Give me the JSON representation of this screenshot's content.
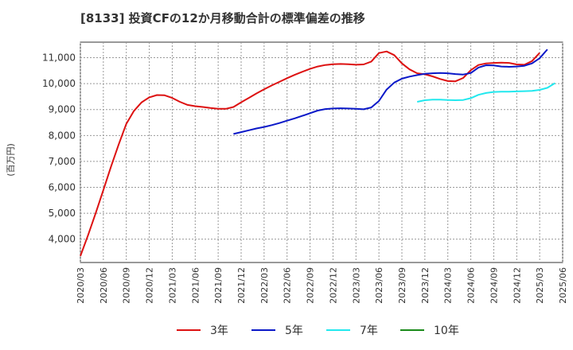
{
  "chart_data": {
    "type": "line",
    "title": "[8133]  投資CFの12か月移動合計の標準偏差の推移",
    "ylabel": "(百万円)",
    "xlabel": "",
    "ylim": [
      3100,
      11600
    ],
    "yticks": [
      4000,
      5000,
      6000,
      7000,
      8000,
      9000,
      10000,
      11000
    ],
    "ytick_labels": [
      "4,000",
      "5,000",
      "6,000",
      "7,000",
      "8,000",
      "9,000",
      "10,000",
      "11,000"
    ],
    "xticks": [
      "2020/03",
      "2020/06",
      "2020/09",
      "2020/12",
      "2021/03",
      "2021/06",
      "2021/09",
      "2021/12",
      "2022/03",
      "2022/06",
      "2022/09",
      "2022/12",
      "2023/03",
      "2023/06",
      "2023/09",
      "2023/12",
      "2024/03",
      "2024/06",
      "2024/09",
      "2024/12",
      "2025/03",
      "2025/06"
    ],
    "grid": true,
    "legend_position": "bottom",
    "series": [
      {
        "name": "3年",
        "color": "#dd1111",
        "start": "2020/03",
        "values": [
          3350,
          4150,
          5000,
          5900,
          6800,
          7650,
          8450,
          8950,
          9280,
          9470,
          9560,
          9550,
          9450,
          9300,
          9180,
          9130,
          9100,
          9060,
          9030,
          9030,
          9100,
          9280,
          9450,
          9620,
          9780,
          9930,
          10070,
          10210,
          10340,
          10460,
          10570,
          10660,
          10720,
          10750,
          10760,
          10750,
          10730,
          10740,
          10850,
          11180,
          11240,
          11100,
          10780,
          10550,
          10400,
          10360,
          10280,
          10180,
          10100,
          10090,
          10220,
          10520,
          10720,
          10780,
          10800,
          10810,
          10800,
          10740,
          10730,
          10870,
          11190
        ]
      },
      {
        "name": "5年",
        "color": "#0a18c8",
        "start": "2021/11",
        "values": [
          8060,
          8130,
          8200,
          8270,
          8330,
          8400,
          8480,
          8570,
          8660,
          8760,
          8860,
          8960,
          9020,
          9040,
          9050,
          9040,
          9030,
          9010,
          9080,
          9330,
          9770,
          10040,
          10190,
          10270,
          10330,
          10380,
          10400,
          10410,
          10400,
          10370,
          10350,
          10410,
          10620,
          10710,
          10700,
          10660,
          10650,
          10660,
          10690,
          10780,
          10980,
          11320
        ]
      },
      {
        "name": "7年",
        "color": "#22e8ee",
        "start": "2023/11",
        "values": [
          9300,
          9360,
          9380,
          9380,
          9370,
          9360,
          9370,
          9440,
          9570,
          9640,
          9680,
          9690,
          9690,
          9700,
          9710,
          9720,
          9760,
          9840,
          10020
        ]
      },
      {
        "name": "10年",
        "color": "#1a8a1a",
        "start": "",
        "values": []
      }
    ]
  }
}
